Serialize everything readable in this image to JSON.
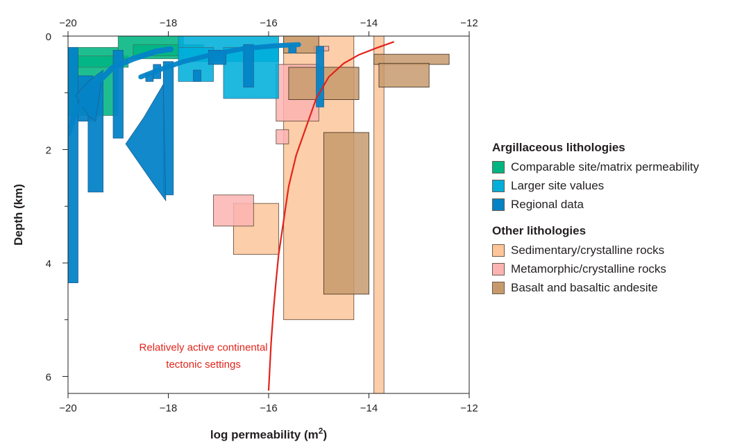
{
  "chart_data": {
    "type": "box",
    "xlabel": "log permeability (m",
    "xlabel_sup": "2",
    "xlabel_tail": ")",
    "ylabel": "Depth (km)",
    "xlim": [
      -20,
      -12
    ],
    "ylim": [
      0,
      6.3
    ],
    "x_axis_position": "top and bottom",
    "y_axis_inverted": true,
    "grid": false,
    "x_ticks": [
      -20,
      -18,
      -16,
      -14,
      -12
    ],
    "x_tick_labels": [
      "−20",
      "−18",
      "−16",
      "−14",
      "−12"
    ],
    "y_ticks": [
      0,
      2,
      4,
      6
    ],
    "y_tick_labels": [
      "0",
      "2",
      "4",
      "6"
    ],
    "colors": {
      "comparable": "#00b582",
      "larger": "#00aedb",
      "regional": "#0483c7",
      "sedimentary": "#fcc69a",
      "metamorphic": "#fbb4b2",
      "basalt": "#c79a6d",
      "curve": "#e2231a"
    },
    "legend": {
      "groups": [
        {
          "heading": "Argillaceous lithologies",
          "items": [
            {
              "label": "Comparable site/matrix permeability",
              "key": "comparable"
            },
            {
              "label": "Larger site values",
              "key": "larger"
            },
            {
              "label": "Regional data",
              "key": "regional"
            }
          ]
        },
        {
          "heading": "Other lithologies",
          "items": [
            {
              "label": "Sedimentary/crystalline rocks",
              "key": "sedimentary"
            },
            {
              "label": "Metamorphic/crystalline rocks",
              "key": "metamorphic"
            },
            {
              "label": "Basalt and basaltic andesite",
              "key": "basalt"
            }
          ]
        }
      ]
    },
    "annotation": {
      "lines": [
        "Relatively active continental",
        "tectonic settings"
      ],
      "x": -17.3,
      "y": [
        5.55,
        5.85
      ]
    },
    "rects": [
      {
        "cat": "sedimentary",
        "x": [
          -15.7,
          -14.3
        ],
        "y": [
          0,
          5.0
        ],
        "opacity": 0.85
      },
      {
        "cat": "sedimentary",
        "x": [
          -13.9,
          -13.7
        ],
        "y": [
          0,
          6.3
        ],
        "opacity": 0.85
      },
      {
        "cat": "sedimentary",
        "x": [
          -16.7,
          -15.8
        ],
        "y": [
          2.95,
          3.85
        ],
        "opacity": 0.85
      },
      {
        "cat": "metamorphic",
        "x": [
          -17.1,
          -16.3
        ],
        "y": [
          2.8,
          3.35
        ],
        "opacity": 0.85
      },
      {
        "cat": "metamorphic",
        "x": [
          -15.85,
          -15.0
        ],
        "y": [
          0.5,
          1.5
        ],
        "opacity": 0.85
      },
      {
        "cat": "metamorphic",
        "x": [
          -15.85,
          -15.6
        ],
        "y": [
          1.65,
          1.9
        ],
        "opacity": 0.85
      },
      {
        "cat": "metamorphic",
        "x": [
          -15.1,
          -14.8
        ],
        "y": [
          0.18,
          0.26
        ],
        "opacity": 0.9
      },
      {
        "cat": "comparable",
        "x": [
          -20.0,
          -19.0
        ],
        "y": [
          0.2,
          1.4
        ],
        "opacity": 0.88
      },
      {
        "cat": "comparable",
        "x": [
          -19.9,
          -18.8
        ],
        "y": [
          0.35,
          0.55
        ],
        "opacity": 0.85
      },
      {
        "cat": "comparable",
        "x": [
          -19.0,
          -17.7
        ],
        "y": [
          0,
          0.4
        ],
        "opacity": 0.88
      },
      {
        "cat": "comparable",
        "x": [
          -18.7,
          -17.3
        ],
        "y": [
          0.15,
          0.35
        ],
        "opacity": 0.85
      },
      {
        "cat": "larger",
        "x": [
          -17.8,
          -15.8
        ],
        "y": [
          0,
          0.45
        ],
        "opacity": 0.88
      },
      {
        "cat": "larger",
        "x": [
          -17.8,
          -17.1
        ],
        "y": [
          0.2,
          0.8
        ],
        "opacity": 0.88
      },
      {
        "cat": "larger",
        "x": [
          -16.9,
          -15.8
        ],
        "y": [
          0.2,
          1.1
        ],
        "opacity": 0.88
      },
      {
        "cat": "basalt",
        "x": [
          -15.7,
          -15.0
        ],
        "y": [
          0,
          0.3
        ],
        "opacity": 0.85
      },
      {
        "cat": "basalt",
        "x": [
          -15.6,
          -14.2
        ],
        "y": [
          0.55,
          1.12
        ],
        "opacity": 0.85
      },
      {
        "cat": "basalt",
        "x": [
          -14.9,
          -14.0
        ],
        "y": [
          1.7,
          4.55
        ],
        "opacity": 0.85
      },
      {
        "cat": "basalt",
        "x": [
          -13.9,
          -12.4
        ],
        "y": [
          0.32,
          0.5
        ],
        "opacity": 0.85
      },
      {
        "cat": "basalt",
        "x": [
          -13.8,
          -12.8
        ],
        "y": [
          0.48,
          0.9
        ],
        "opacity": 0.85
      },
      {
        "cat": "regional",
        "x": [
          -20.0,
          -19.8
        ],
        "y": [
          0.2,
          4.35
        ],
        "opacity": 0.95
      },
      {
        "cat": "regional",
        "x": [
          -19.8,
          -19.5
        ],
        "y": [
          0.7,
          1.5
        ],
        "opacity": 0.95
      },
      {
        "cat": "regional",
        "x": [
          -19.6,
          -19.3
        ],
        "y": [
          0.8,
          2.75
        ],
        "opacity": 0.95
      },
      {
        "cat": "regional",
        "x": [
          -19.1,
          -18.9
        ],
        "y": [
          0.25,
          1.8
        ],
        "opacity": 0.95
      },
      {
        "cat": "regional",
        "x": [
          -18.45,
          -18.3
        ],
        "y": [
          0.65,
          0.8
        ],
        "opacity": 0.95
      },
      {
        "cat": "regional",
        "x": [
          -18.3,
          -18.15
        ],
        "y": [
          0.5,
          0.75
        ],
        "opacity": 0.95
      },
      {
        "cat": "regional",
        "x": [
          -18.1,
          -17.9
        ],
        "y": [
          0.45,
          2.8
        ],
        "opacity": 0.95
      },
      {
        "cat": "regional",
        "x": [
          -17.5,
          -17.35
        ],
        "y": [
          0.6,
          0.8
        ],
        "opacity": 0.95
      },
      {
        "cat": "regional",
        "x": [
          -17.2,
          -16.85
        ],
        "y": [
          0.25,
          0.5
        ],
        "opacity": 0.95
      },
      {
        "cat": "regional",
        "x": [
          -16.5,
          -16.3
        ],
        "y": [
          0.15,
          0.9
        ],
        "opacity": 0.95
      },
      {
        "cat": "regional",
        "x": [
          -15.6,
          -15.45
        ],
        "y": [
          0.15,
          0.3
        ],
        "opacity": 0.95
      },
      {
        "cat": "regional",
        "x": [
          -15.05,
          -14.9
        ],
        "y": [
          0.18,
          1.25
        ],
        "opacity": 0.95
      }
    ],
    "polygons": [
      {
        "cat": "regional",
        "points": [
          [
            -19.3,
            0.6
          ],
          [
            -19.6,
            0.8
          ],
          [
            -19.85,
            1.05
          ],
          [
            -19.6,
            1.4
          ],
          [
            -19.45,
            1.5
          ]
        ]
      },
      {
        "cat": "regional",
        "points": [
          [
            -18.1,
            0.85
          ],
          [
            -18.5,
            1.45
          ],
          [
            -18.85,
            1.9
          ],
          [
            -18.3,
            2.6
          ],
          [
            -18.05,
            2.9
          ]
        ]
      }
    ],
    "bands": [
      {
        "cat": "regional",
        "width": 0.1,
        "points": [
          [
            -20.0,
            1.72
          ],
          [
            -19.85,
            1.35
          ],
          [
            -19.5,
            0.9
          ],
          [
            -19.1,
            0.55
          ],
          [
            -18.7,
            0.4
          ],
          [
            -18.25,
            0.27
          ],
          [
            -17.95,
            0.23
          ]
        ]
      },
      {
        "cat": "regional",
        "width": 0.085,
        "points": [
          [
            -18.55,
            0.72
          ],
          [
            -18.2,
            0.6
          ],
          [
            -17.7,
            0.45
          ],
          [
            -17.1,
            0.32
          ],
          [
            -16.5,
            0.22
          ],
          [
            -15.85,
            0.17
          ],
          [
            -15.4,
            0.15
          ]
        ]
      }
    ],
    "curve": {
      "cat": "curve",
      "x": [
        -16.0,
        -15.95,
        -15.9,
        -15.85,
        -15.8,
        -15.7,
        -15.6,
        -15.45,
        -15.25,
        -15.05,
        -14.8,
        -14.5,
        -14.2,
        -13.85,
        -13.5
      ],
      "y": [
        6.25,
        5.4,
        4.8,
        4.3,
        3.85,
        3.25,
        2.65,
        2.1,
        1.6,
        1.1,
        0.72,
        0.48,
        0.33,
        0.21,
        0.1
      ]
    }
  }
}
